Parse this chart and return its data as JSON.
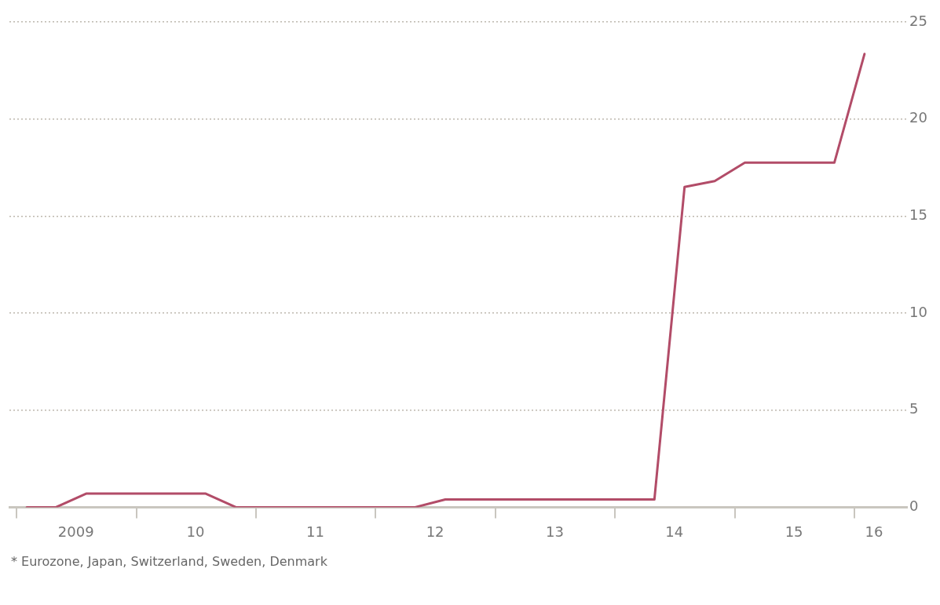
{
  "chart_data": {
    "type": "line",
    "x": [
      "2009-02",
      "2009-05",
      "2009-08",
      "2010-08",
      "2010-11",
      "2012-05",
      "2012-08",
      "2014-05",
      "2014-08",
      "2014-11",
      "2015-02",
      "2015-11",
      "2016-02"
    ],
    "series": [
      {
        "color": "#b24c68",
        "values": [
          0,
          0,
          0.7,
          0.7,
          0,
          0,
          0.4,
          0.4,
          16.5,
          16.8,
          17.75,
          17.75,
          23.35
        ]
      }
    ],
    "xlim": [
      "2008-12-10",
      "2016-06-10"
    ],
    "xticks": [
      {
        "value": "2009-01",
        "label": null
      },
      {
        "value": "2009-07",
        "label": "2009"
      },
      {
        "value": "2010-01",
        "label": null
      },
      {
        "value": "2010-07",
        "label": "10"
      },
      {
        "value": "2011-01",
        "label": null
      },
      {
        "value": "2011-07",
        "label": "11"
      },
      {
        "value": "2012-01",
        "label": null
      },
      {
        "value": "2012-07",
        "label": "12"
      },
      {
        "value": "2013-01",
        "label": null
      },
      {
        "value": "2013-07",
        "label": "13"
      },
      {
        "value": "2014-01",
        "label": null
      },
      {
        "value": "2014-07",
        "label": "14"
      },
      {
        "value": "2015-01",
        "label": null
      },
      {
        "value": "2015-07",
        "label": "15"
      },
      {
        "value": "2016-01",
        "label": null
      },
      {
        "value": "2016-03",
        "label": "16"
      }
    ],
    "ylim": [
      0,
      25
    ],
    "yticks": [
      0,
      5,
      10,
      15,
      20,
      25
    ],
    "grid": "y",
    "line_style": "solid",
    "marker": "none",
    "annotations": [
      "* Eurozone, Japan, Switzerland, Sweden, Denmark"
    ]
  }
}
